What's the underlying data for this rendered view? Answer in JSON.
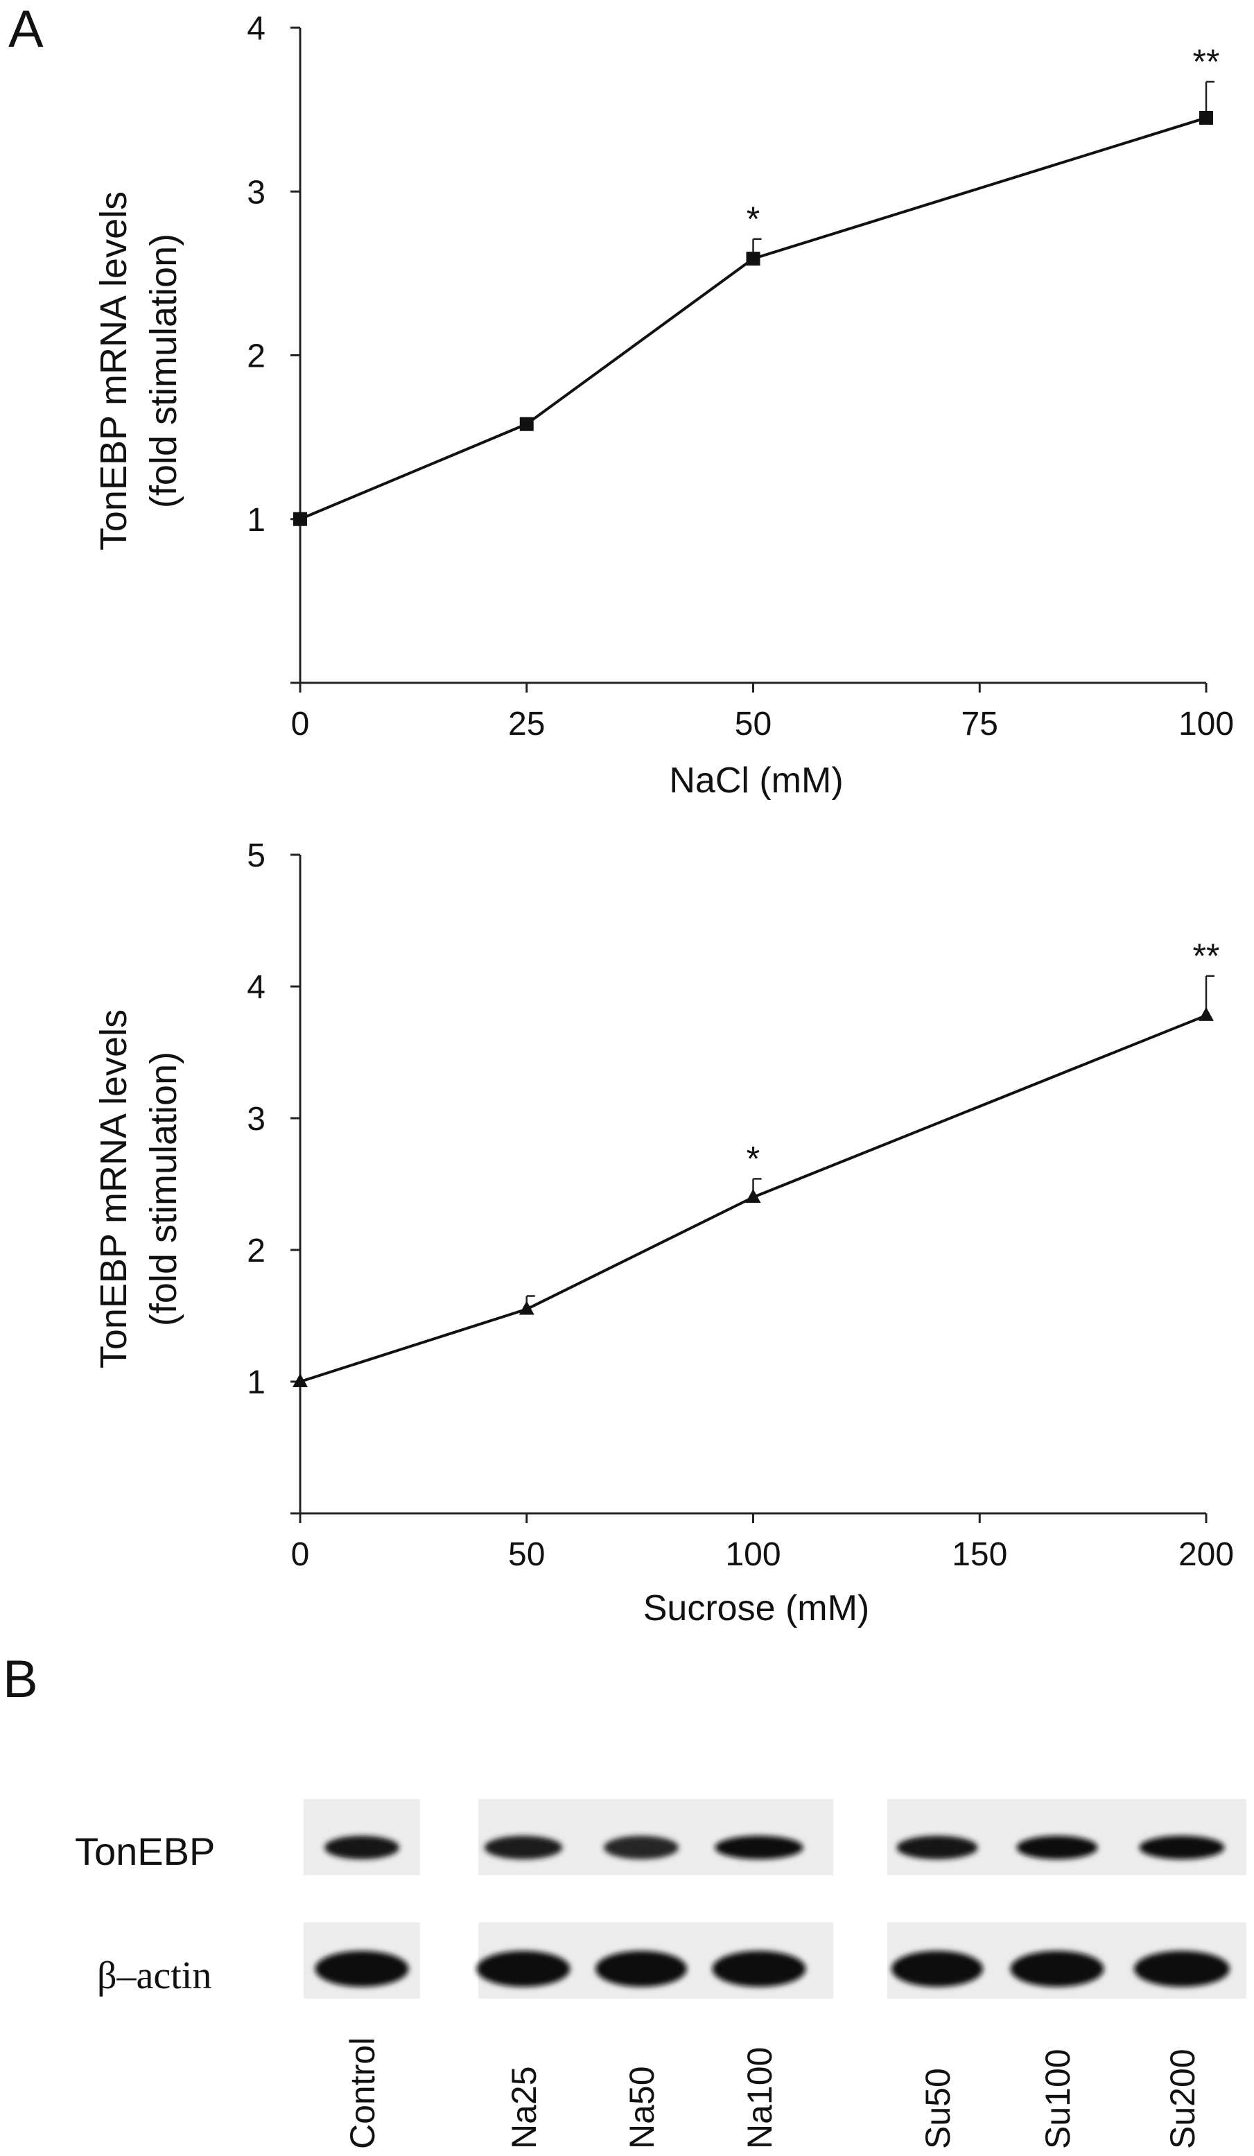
{
  "panels": {
    "a_label": "A",
    "b_label": "B"
  },
  "chart_data": [
    {
      "type": "line",
      "panel": "A (top)",
      "title": "",
      "xlabel": "NaCl (mM)",
      "ylabel": [
        "TonEBP mRNA levels",
        "(fold stimulation)"
      ],
      "xlim": [
        0,
        100
      ],
      "ylim": [
        0,
        4
      ],
      "x_ticks": [
        0,
        25,
        50,
        75,
        100
      ],
      "y_ticks": [
        1,
        2,
        3,
        4
      ],
      "marker": "square",
      "series": [
        {
          "name": "NaCl",
          "x": [
            0,
            25,
            50,
            100
          ],
          "values": [
            1.0,
            1.58,
            2.59,
            3.45
          ],
          "error": [
            0,
            0,
            0.12,
            0.22
          ],
          "significance": [
            "",
            "",
            "*",
            "**"
          ]
        }
      ]
    },
    {
      "type": "line",
      "panel": "A (bottom)",
      "title": "",
      "xlabel": "Sucrose (mM)",
      "ylabel": [
        "TonEBP mRNA levels",
        "(fold stimulation)"
      ],
      "xlim": [
        0,
        200
      ],
      "ylim": [
        0,
        5
      ],
      "x_ticks": [
        0,
        50,
        100,
        150,
        200
      ],
      "y_ticks": [
        1,
        2,
        3,
        4,
        5
      ],
      "marker": "triangle",
      "series": [
        {
          "name": "Sucrose",
          "x": [
            0,
            50,
            100,
            200
          ],
          "values": [
            1.0,
            1.55,
            2.4,
            3.78
          ],
          "error": [
            0,
            0.1,
            0.14,
            0.3
          ],
          "significance": [
            "",
            "",
            "*",
            "**"
          ]
        }
      ]
    }
  ],
  "blot": {
    "rows": [
      {
        "label": "TonEBP",
        "serif": false,
        "bands": [
          {
            "lane": 0,
            "intensity": 0.85,
            "width": 0.72
          },
          {
            "lane": 1,
            "intensity": 0.7,
            "width": 0.75
          },
          {
            "lane": 2,
            "intensity": 0.5,
            "width": 0.72
          },
          {
            "lane": 3,
            "intensity": 0.95,
            "width": 0.85
          },
          {
            "lane": 4,
            "intensity": 0.85,
            "width": 0.78
          },
          {
            "lane": 5,
            "intensity": 0.9,
            "width": 0.78
          },
          {
            "lane": 6,
            "intensity": 0.95,
            "width": 0.82
          }
        ]
      },
      {
        "label": "β–actin",
        "serif": true,
        "bands": [
          {
            "lane": 0,
            "intensity": 1.0,
            "width": 0.9
          },
          {
            "lane": 1,
            "intensity": 1.0,
            "width": 0.9
          },
          {
            "lane": 2,
            "intensity": 1.0,
            "width": 0.88
          },
          {
            "lane": 3,
            "intensity": 1.0,
            "width": 0.9
          },
          {
            "lane": 4,
            "intensity": 1.0,
            "width": 0.88
          },
          {
            "lane": 5,
            "intensity": 1.0,
            "width": 0.9
          },
          {
            "lane": 6,
            "intensity": 1.0,
            "width": 0.92
          }
        ]
      }
    ],
    "lanes": [
      "Control",
      "Na25",
      "Na50",
      "Na100",
      "Su50",
      "Su100",
      "Su200"
    ]
  }
}
